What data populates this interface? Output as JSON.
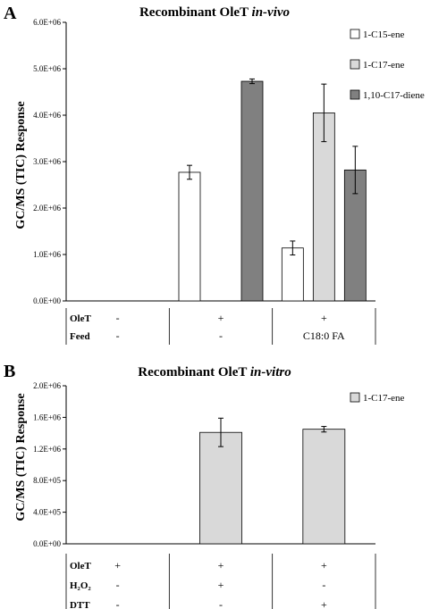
{
  "colors": {
    "white_series": "#ffffff",
    "light_gray_series": "#d9d9d9",
    "dark_gray_series": "#808080",
    "axis": "#000000"
  },
  "chart_data": [
    {
      "panel_label": "A",
      "type": "bar",
      "title_main": "Recombinant OleT ",
      "title_italic": "in-vivo",
      "ylabel": "GC/MS (TIC) Response",
      "xlabel": "",
      "ylim": [
        0,
        6000000
      ],
      "yticks": [
        0,
        1000000,
        2000000,
        3000000,
        4000000,
        5000000,
        6000000
      ],
      "ytick_labels": [
        "0.0E+00",
        "1.0E+06",
        "2.0E+06",
        "3.0E+06",
        "4.0E+06",
        "5.0E+06",
        "6.0E+06"
      ],
      "grid": false,
      "legend_position": "top-right",
      "categories": [
        "1",
        "2",
        "3"
      ],
      "series": [
        {
          "name": "1-C15-ene",
          "color": "#ffffff",
          "values": [
            0,
            2770000,
            1140000
          ],
          "errors": [
            0,
            150000,
            150000
          ]
        },
        {
          "name": "1-C17-ene",
          "color": "#d9d9d9",
          "values": [
            0,
            0,
            4050000
          ],
          "errors": [
            0,
            0,
            620000
          ]
        },
        {
          "name": "1,10-C17-diene",
          "color": "#808080",
          "values": [
            0,
            4730000,
            2820000
          ],
          "errors": [
            0,
            50000,
            510000
          ]
        }
      ],
      "condition_rows": [
        {
          "label": "OleT",
          "values": [
            "-",
            "+",
            "+"
          ]
        },
        {
          "label": "Feed",
          "values": [
            "-",
            "-",
            "C18:0 FA"
          ]
        }
      ]
    },
    {
      "panel_label": "B",
      "type": "bar",
      "title_main": "Recombinant OleT ",
      "title_italic": "in-vitro",
      "ylabel": "GC/MS (TIC) Response",
      "xlabel": "",
      "ylim": [
        0,
        2000000
      ],
      "yticks": [
        0,
        400000,
        800000,
        1200000,
        1600000,
        2000000
      ],
      "ytick_labels": [
        "0.0E+00",
        "4.0E+05",
        "8.0E+05",
        "1.2E+06",
        "1.6E+06",
        "2.0E+06"
      ],
      "grid": false,
      "legend_position": "top-right",
      "categories": [
        "1",
        "2",
        "3"
      ],
      "series": [
        {
          "name": "1-C17-ene",
          "color": "#d9d9d9",
          "values": [
            0,
            1410000,
            1450000
          ],
          "errors": [
            0,
            180000,
            35000
          ]
        }
      ],
      "condition_rows": [
        {
          "label": "OleT",
          "values": [
            "+",
            "+",
            "+"
          ]
        },
        {
          "label": "H₂O₂",
          "values": [
            "-",
            "+",
            "-"
          ]
        },
        {
          "label": "DTT",
          "values": [
            "-",
            "-",
            "+"
          ]
        }
      ]
    }
  ]
}
